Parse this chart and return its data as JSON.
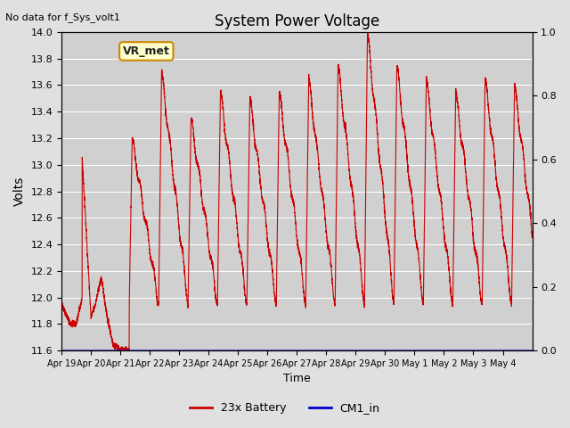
{
  "title": "System Power Voltage",
  "no_data_text": "No data for f_Sys_volt1",
  "ylabel_left": "Volts",
  "xlabel": "Time",
  "ylim_left": [
    11.6,
    14.0
  ],
  "ylim_right": [
    0.0,
    1.0
  ],
  "yticks_left": [
    11.6,
    11.8,
    12.0,
    12.2,
    12.4,
    12.6,
    12.8,
    13.0,
    13.2,
    13.4,
    13.6,
    13.8,
    14.0
  ],
  "yticks_right": [
    0.0,
    0.2,
    0.4,
    0.6,
    0.8,
    1.0
  ],
  "xtick_positions": [
    0,
    1,
    2,
    3,
    4,
    5,
    6,
    7,
    8,
    9,
    10,
    11,
    12,
    13,
    14,
    15
  ],
  "xtick_labels": [
    "Apr 19",
    "Apr 20",
    "Apr 21",
    "Apr 22",
    "Apr 23",
    "Apr 24",
    "Apr 25",
    "Apr 26",
    "Apr 27",
    "Apr 28",
    "Apr 29",
    "Apr 30",
    "May 1",
    "May 2",
    "May 3",
    "May 4"
  ],
  "n_days": 16,
  "background_color": "#e0e0e0",
  "plot_bg_color": "#d0d0d0",
  "grid_color": "#ffffff",
  "line_color_battery": "#cc0000",
  "line_color_cm1": "#0000cc",
  "legend_battery": "23x Battery",
  "legend_cm1": "CM1_in",
  "annotation_label": "VR_met",
  "annotation_edge_color": "#cc8800",
  "annotation_face_color": "#ffffcc"
}
